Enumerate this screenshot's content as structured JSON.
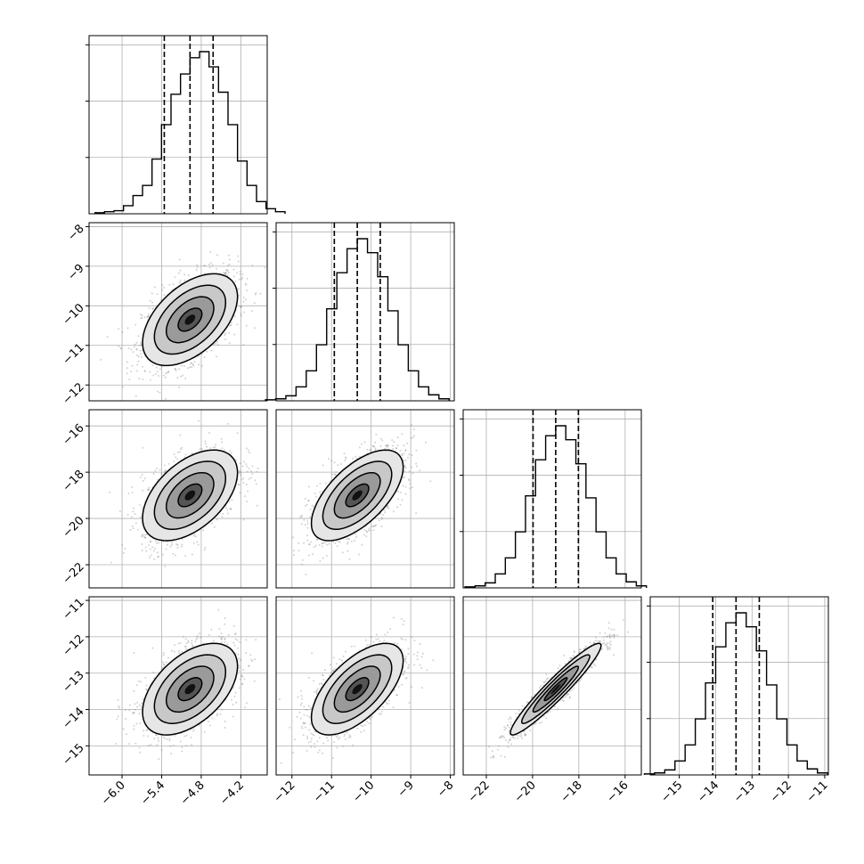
{
  "chart_data": {
    "type": "corner",
    "parameters": [
      {
        "range": [
          -6.5,
          -3.8
        ],
        "ticks": [
          -6.0,
          -5.4,
          -4.8,
          -4.2
        ],
        "tick_labels": [
          "−6.0",
          "−5.4",
          "−4.8",
          "−4.2"
        ],
        "mean": -4.97,
        "sd": 0.36,
        "quantiles": [
          -5.36,
          -4.97,
          -4.62
        ]
      },
      {
        "range": [
          -12.4,
          -7.9
        ],
        "ticks": [
          -12,
          -11,
          -10,
          -9,
          -8
        ],
        "tick_labels": [
          "−12",
          "−11",
          "−10",
          "−9",
          "−8"
        ],
        "mean": -10.35,
        "sd": 0.58,
        "quantiles": [
          -10.93,
          -10.35,
          -9.77
        ]
      },
      {
        "range": [
          -23.0,
          -15.3
        ],
        "ticks": [
          -22,
          -20,
          -18,
          -16
        ],
        "tick_labels": [
          "−22",
          "−20",
          "−18",
          "−16"
        ],
        "mean": -19.0,
        "sd": 0.98,
        "quantiles": [
          -19.98,
          -19.0,
          -18.02
        ]
      },
      {
        "range": [
          -15.8,
          -10.9
        ],
        "ticks": [
          -15,
          -14,
          -13,
          -12,
          -11
        ],
        "tick_labels": [
          "−15",
          "−14",
          "−13",
          "−12",
          "−11"
        ],
        "mean": -13.44,
        "sd": 0.63,
        "quantiles": [
          -14.08,
          -13.44,
          -12.8
        ]
      }
    ],
    "correlations": [
      [
        1.0,
        0.5,
        0.5,
        0.5
      ],
      [
        0.5,
        1.0,
        0.62,
        0.62
      ],
      [
        0.5,
        0.62,
        1.0,
        0.95
      ],
      [
        0.5,
        0.62,
        0.95,
        1.0
      ]
    ],
    "histograms": [
      [
        1,
        2,
        3,
        8,
        18,
        28,
        54,
        88,
        118,
        138,
        154,
        160,
        145,
        120,
        88,
        52,
        28,
        12,
        5,
        2
      ],
      [
        1,
        2,
        5,
        14,
        30,
        56,
        92,
        128,
        152,
        162,
        148,
        124,
        90,
        56,
        30,
        14,
        6,
        2
      ],
      [
        1,
        2,
        5,
        14,
        30,
        56,
        92,
        128,
        152,
        162,
        148,
        124,
        90,
        56,
        30,
        14,
        6,
        2
      ],
      [
        1,
        2,
        5,
        14,
        30,
        56,
        92,
        128,
        152,
        162,
        148,
        124,
        90,
        56,
        30,
        14,
        6,
        2
      ]
    ],
    "hist_yticks": 3,
    "contour_levels_sigma": [
      0.5,
      1.0,
      1.5,
      2.0
    ],
    "grid": true
  }
}
